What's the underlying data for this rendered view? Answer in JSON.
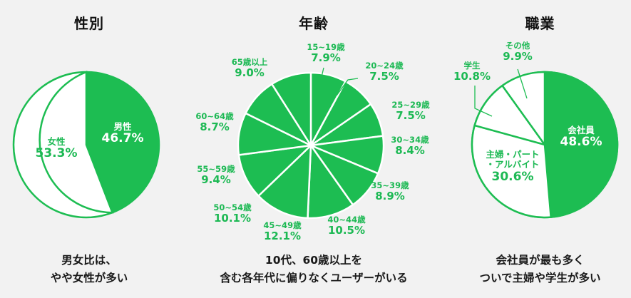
{
  "colors": {
    "accent": "#1dbd52",
    "background": "#f2f2f2",
    "slice_light": "#ffffff",
    "text_dark": "#111111"
  },
  "gender": {
    "title": "性別",
    "caption_line1": "男女比は、",
    "caption_line2": "やや女性が多い",
    "slices": [
      {
        "label": "男性",
        "value": "46.7%"
      },
      {
        "label": "女性",
        "value": "53.3%"
      }
    ]
  },
  "age": {
    "title": "年齢",
    "caption_line1": "10代、60歳以上を",
    "caption_line2": "含む各年代に偏りなくユーザーがいる",
    "slices": [
      {
        "label": "15~19歳",
        "value": "7.9%"
      },
      {
        "label": "20~24歳",
        "value": "7.5%"
      },
      {
        "label": "25~29歳",
        "value": "7.5%"
      },
      {
        "label": "30~34歳",
        "value": "8.4%"
      },
      {
        "label": "35~39歳",
        "value": "8.9%"
      },
      {
        "label": "40~44歳",
        "value": "10.5%"
      },
      {
        "label": "45~49歳",
        "value": "12.1%"
      },
      {
        "label": "50~54歳",
        "value": "10.1%"
      },
      {
        "label": "55~59歳",
        "value": "9.4%"
      },
      {
        "label": "60~64歳",
        "value": "8.7%"
      },
      {
        "label": "65歳以上",
        "value": "9.0%"
      }
    ]
  },
  "occupation": {
    "title": "職業",
    "caption_line1": "会社員が最も多く",
    "caption_line2": "ついで主婦や学生が多い",
    "slices": [
      {
        "label": "会社員",
        "value": "48.6%"
      },
      {
        "label": "主婦・パート",
        "label2": "・アルバイト",
        "value": "30.6%"
      },
      {
        "label": "学生",
        "value": "10.8%"
      },
      {
        "label": "その他",
        "value": "9.9%"
      }
    ]
  },
  "chart_data": [
    {
      "type": "pie",
      "title": "性別",
      "categories": [
        "男性",
        "女性"
      ],
      "values": [
        46.7,
        53.3
      ],
      "unit": "%",
      "annotation": "男女比は、やや女性が多い"
    },
    {
      "type": "pie",
      "title": "年齢",
      "categories": [
        "15~19歳",
        "20~24歳",
        "25~29歳",
        "30~34歳",
        "35~39歳",
        "40~44歳",
        "45~49歳",
        "50~54歳",
        "55~59歳",
        "60~64歳",
        "65歳以上"
      ],
      "values": [
        7.9,
        7.5,
        7.5,
        8.4,
        8.9,
        10.5,
        12.1,
        10.1,
        9.4,
        8.7,
        9.0
      ],
      "unit": "%",
      "annotation": "10代、60歳以上を含む各年代に偏りなくユーザーがいる"
    },
    {
      "type": "pie",
      "title": "職業",
      "categories": [
        "会社員",
        "主婦・パート・アルバイト",
        "学生",
        "その他"
      ],
      "values": [
        48.6,
        30.6,
        10.8,
        9.9
      ],
      "unit": "%",
      "annotation": "会社員が最も多くついで主婦や学生が多い"
    }
  ]
}
